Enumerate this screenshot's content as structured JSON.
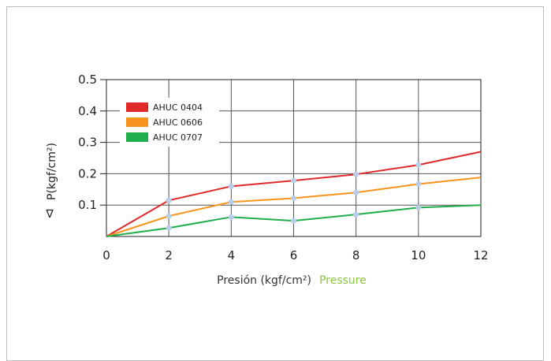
{
  "chart_data": {
    "type": "line",
    "x": [
      0,
      2,
      4,
      6,
      8,
      10,
      12
    ],
    "xticks": [
      "0",
      "2",
      "4",
      "6",
      "8",
      "10",
      "12"
    ],
    "yticks": [
      "0.1",
      "0.2",
      "0.3",
      "0.4",
      "0.5"
    ],
    "xlim": [
      0,
      12
    ],
    "ylim": [
      0,
      0.5
    ],
    "xlabel_primary": "Presión (kgf/cm²)",
    "xlabel_secondary": "Pressure",
    "ylabel": "P(kgf/cm²)",
    "ylabel_prefix": "∇",
    "grid": true,
    "legend_position": "top-left",
    "series": [
      {
        "name": "AHUC 0404",
        "color": "#e02a2a",
        "values": [
          0.0,
          0.115,
          0.16,
          0.178,
          0.198,
          0.228,
          0.27
        ]
      },
      {
        "name": "AHUC 0606",
        "color": "#f7941d",
        "values": [
          0.0,
          0.065,
          0.11,
          0.122,
          0.14,
          0.167,
          0.188
        ]
      },
      {
        "name": "AHUC 0707",
        "color": "#1fae4b",
        "values": [
          0.0,
          0.027,
          0.062,
          0.05,
          0.07,
          0.092,
          0.1
        ]
      }
    ],
    "marker_color": "#b9cde8"
  }
}
